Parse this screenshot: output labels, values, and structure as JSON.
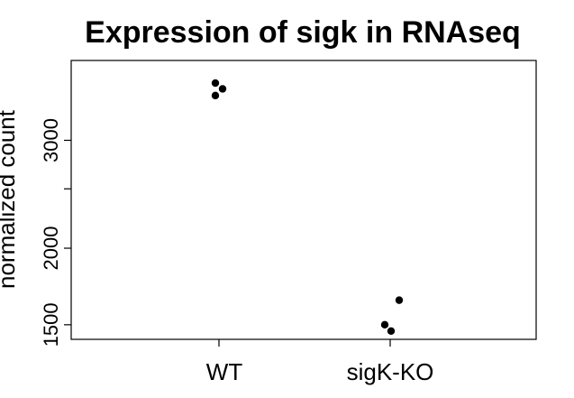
{
  "chart_data": {
    "type": "scatter",
    "title": "Expression of sigk in RNAseq",
    "xlabel": "",
    "ylabel": "normalized count",
    "categories": [
      "WT",
      "sigK-KO"
    ],
    "y_scale": "log",
    "y_ticks": [
      1500,
      2000,
      3000
    ],
    "y_minor_ticks": [
      2500
    ],
    "ylim": [
      1420,
      4050
    ],
    "grid": false,
    "points": [
      {
        "category": "WT",
        "y": 3720
      },
      {
        "category": "WT",
        "y": 3640
      },
      {
        "category": "WT",
        "y": 3550
      },
      {
        "category": "sigK-KO",
        "y": 1645
      },
      {
        "category": "sigK-KO",
        "y": 1500
      },
      {
        "category": "sigK-KO",
        "y": 1465
      }
    ]
  },
  "colors": {
    "points": "#000000",
    "axes": "#000000",
    "background": "#ffffff"
  }
}
